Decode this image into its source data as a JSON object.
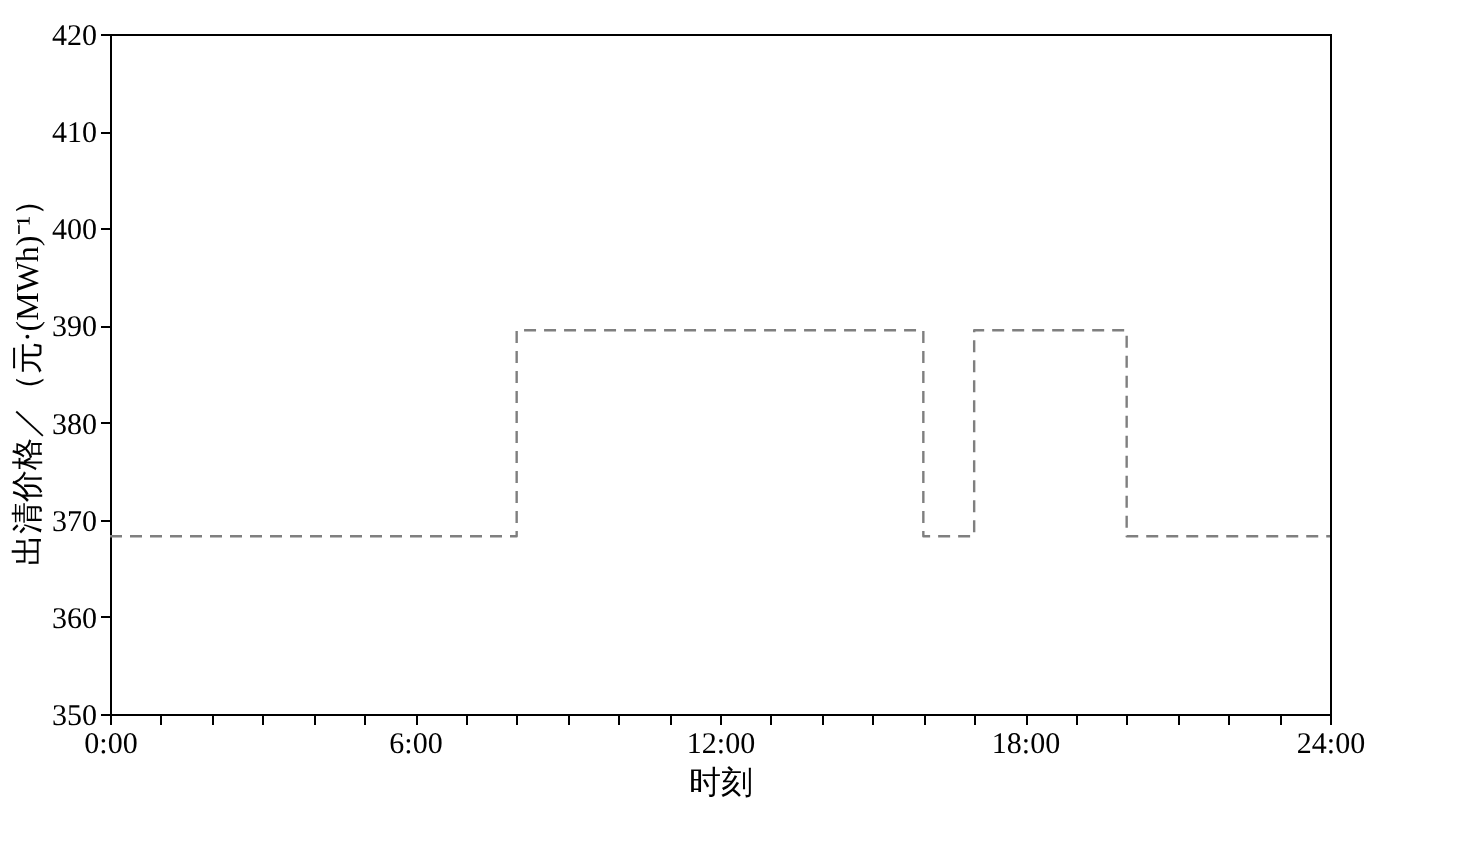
{
  "chart_data": {
    "type": "step",
    "xlabel": "时刻",
    "ylabel": "出清价格／（元·(MWh)⁻¹）",
    "x": [
      0,
      8,
      16,
      17,
      20,
      24
    ],
    "series": [
      {
        "color": "#7f7f7f",
        "values": [
          368.3,
          389.5,
          368.3,
          389.5,
          368.3,
          368.3
        ]
      }
    ],
    "line_style": "dashed",
    "marker": "none",
    "grid": false,
    "xlim": [
      0,
      24
    ],
    "xticks": [
      {
        "value": 0,
        "label": "0:00"
      },
      {
        "value": 1,
        "label": null
      },
      {
        "value": 2,
        "label": null
      },
      {
        "value": 3,
        "label": null
      },
      {
        "value": 4,
        "label": null
      },
      {
        "value": 5,
        "label": null
      },
      {
        "value": 6,
        "label": "6:00"
      },
      {
        "value": 7,
        "label": null
      },
      {
        "value": 8,
        "label": null
      },
      {
        "value": 9,
        "label": null
      },
      {
        "value": 10,
        "label": null
      },
      {
        "value": 11,
        "label": null
      },
      {
        "value": 12,
        "label": "12:00"
      },
      {
        "value": 13,
        "label": null
      },
      {
        "value": 14,
        "label": null
      },
      {
        "value": 15,
        "label": null
      },
      {
        "value": 16,
        "label": null
      },
      {
        "value": 17,
        "label": null
      },
      {
        "value": 18,
        "label": "18:00"
      },
      {
        "value": 19,
        "label": null
      },
      {
        "value": 20,
        "label": null
      },
      {
        "value": 21,
        "label": null
      },
      {
        "value": 22,
        "label": null
      },
      {
        "value": 23,
        "label": null
      },
      {
        "value": 24,
        "label": "24:00"
      }
    ],
    "ylim": [
      350,
      420
    ],
    "yticks": [
      350,
      360,
      370,
      380,
      390,
      400,
      410,
      420
    ]
  }
}
